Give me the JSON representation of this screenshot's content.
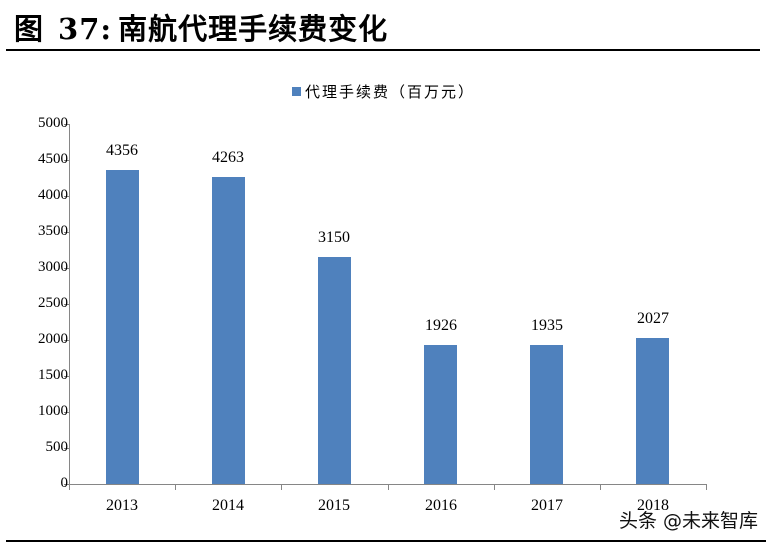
{
  "figure": {
    "label": "图",
    "number": "37:",
    "title": "南航代理手续费变化"
  },
  "watermark": "头条 @未来智库",
  "colors": {
    "bar": "#4F81BD",
    "axis": "#868686",
    "rule": "#000000"
  },
  "chart_data": {
    "type": "bar",
    "title": "南航代理手续费变化",
    "categories": [
      "2013",
      "2014",
      "2015",
      "2016",
      "2017",
      "2018"
    ],
    "series": [
      {
        "name": "代理手续费（百万元）",
        "values": [
          4356,
          4263,
          3150,
          1926,
          1935,
          2027
        ]
      }
    ],
    "xlabel": "",
    "ylabel": "",
    "ylim": [
      0,
      5000
    ],
    "yticks": [
      0,
      500,
      1000,
      1500,
      2000,
      2500,
      3000,
      3500,
      4000,
      4500,
      5000
    ],
    "legend_position": "top-center",
    "grid": false,
    "data_labels": true
  }
}
